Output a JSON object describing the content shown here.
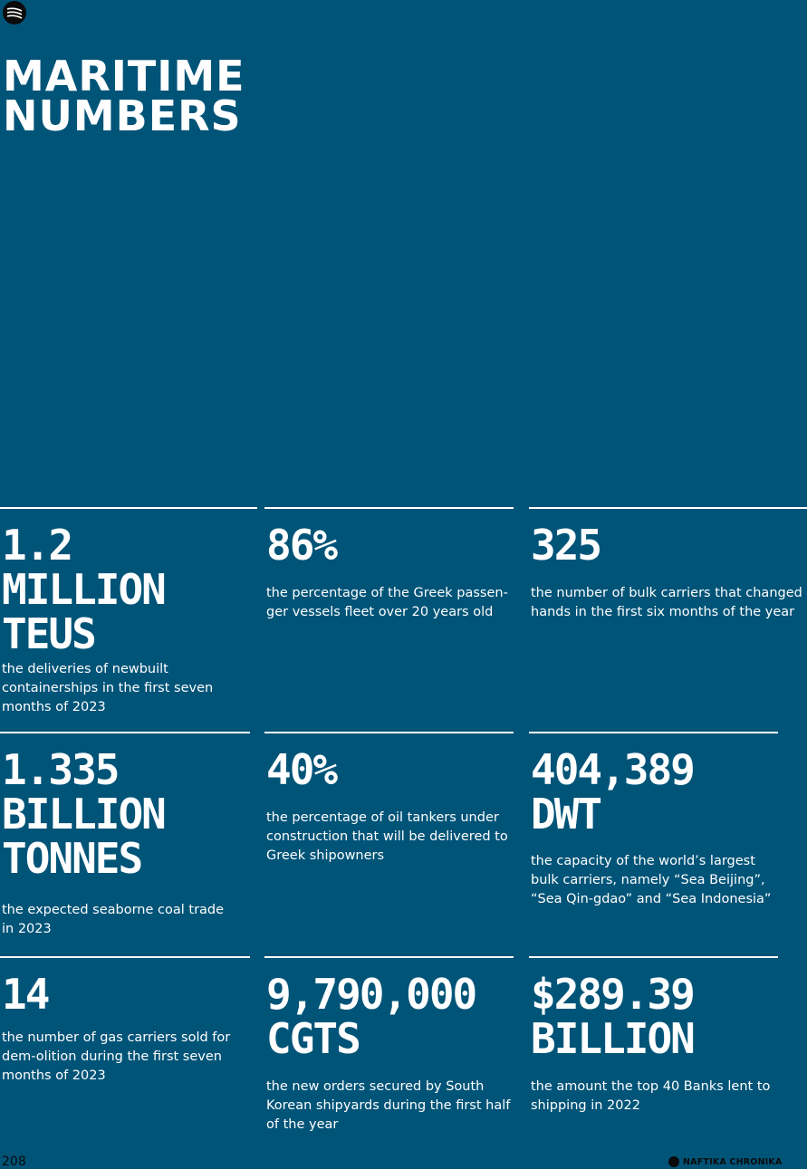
{
  "header": {
    "title_line1": "MARITIME",
    "title_line2": "NUMBERS"
  },
  "stats": [
    {
      "lines": [
        "1.2",
        "MILLION",
        "TEUS"
      ],
      "desc": "the deliveries of newbuilt containerships in the first seven months of 2023"
    },
    {
      "lines": [
        "86%"
      ],
      "desc": "the percentage of the Greek passen-ger vessels fleet over 20 years old"
    },
    {
      "lines": [
        "325"
      ],
      "desc": "the number of bulk carriers that changed hands in the first six months of the year"
    },
    {
      "lines": [
        "1.335",
        "BILLION",
        "TONNES"
      ],
      "desc": "the expected seaborne coal trade in 2023"
    },
    {
      "lines": [
        "40%"
      ],
      "desc": "the percentage of oil tankers under construction that will be delivered to Greek shipowners"
    },
    {
      "lines": [
        "404,389",
        "DWT"
      ],
      "desc": "the capacity of the world’s largest bulk carriers, namely “Sea Beijing”, “Sea Qin-gdao” and “Sea Indonesia”"
    },
    {
      "lines": [
        "14"
      ],
      "desc": "the number of gas carriers sold for dem-olition during the first seven months of 2023"
    },
    {
      "lines": [
        "9,790,000",
        "CGTS"
      ],
      "desc": "the new orders secured by South Korean shipyards during the first half of the year"
    },
    {
      "lines": [
        "$289.39",
        "BILLION"
      ],
      "desc": "the amount the top 40 Banks lent to shipping in 2022"
    }
  ],
  "footer": {
    "page_number": "208",
    "brand": "NAFTIKA CHRONIKA"
  },
  "colors": {
    "background": "#005478",
    "text": "#ffffff",
    "dark": "#0b0b0b"
  }
}
